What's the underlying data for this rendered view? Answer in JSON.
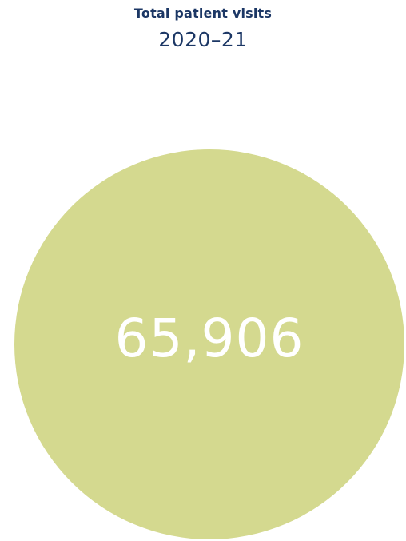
{
  "chart_data": {
    "type": "pie",
    "title": "Total patient visits",
    "subtitle": "2020–21",
    "categories": [
      "Total patient visits"
    ],
    "values": [
      65906
    ],
    "value_label": "65,906"
  },
  "colors": {
    "circle_fill": "#d4d98f",
    "text_primary": "#1c3765",
    "leader_line": "#1c3765",
    "value_text": "#ffffff"
  }
}
